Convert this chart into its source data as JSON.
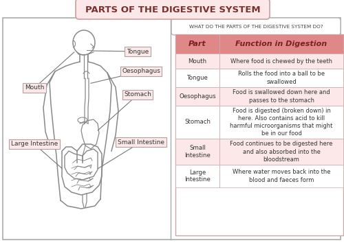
{
  "title": "PARTS OF THE DIGESTIVE SYSTEM",
  "subtitle": "WHAT DO THE PARTS OF THE DIGESTIVE SYSTEM DO?",
  "header_part": "Part",
  "header_function": "Function in Digestion",
  "rows": [
    {
      "part": "Mouth",
      "function": "Where food is chewed by the teeth"
    },
    {
      "part": "Tongue",
      "function": "Rolls the food into a ball to be\nswallowed"
    },
    {
      "part": "Oesophagus",
      "function": "Food is swallowed down here and\npasses to the stomach"
    },
    {
      "part": "Stomach",
      "function": "Food is digested (broken down) in\nhere. Also contains acid to kill\nharmful microorganisms that might\nbe in our food"
    },
    {
      "part": "Small\nIntestine",
      "function": "Food continues to be digested here\nand also absorbed into the\nbloodstream"
    },
    {
      "part": "Large\nIntestine",
      "function": "Where water moves back into the\nblood and faeces form"
    }
  ],
  "bg_color": "#ffffff",
  "title_bg": "#fce8e8",
  "title_border": "#c8a0a0",
  "header_bg": "#e08888",
  "row_alt_bg": "#fce8e8",
  "row_bg": "#ffffff",
  "title_color": "#7a3030",
  "header_text_color": "#7a2020",
  "body_text_color": "#333333",
  "label_bg": "#fce8e8",
  "label_border": "#b0a0a0",
  "line_color": "#888888",
  "body_outline": "#888888",
  "table_border": "#c8a8a8",
  "subtitle_border": "#b0b0b0"
}
